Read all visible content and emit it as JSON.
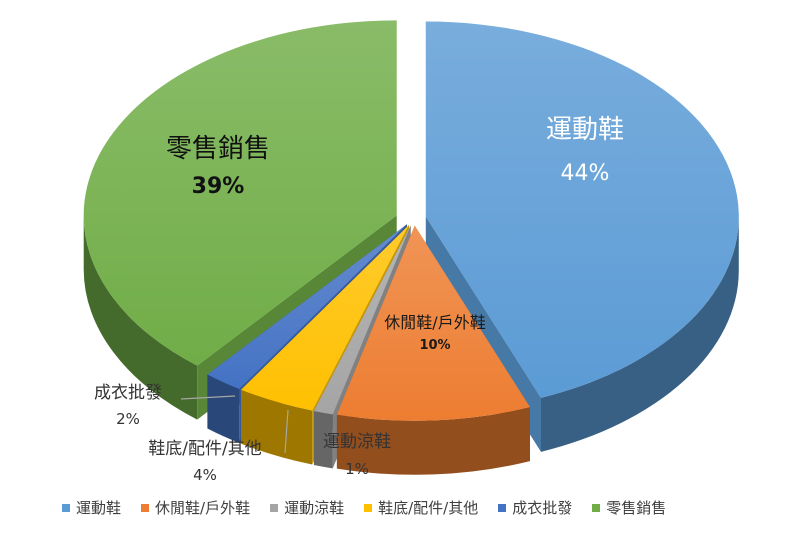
{
  "chart_data": {
    "type": "pie",
    "title": "",
    "style": "3d-exploded",
    "legend_position": "bottom",
    "slices": [
      {
        "label": "運動鞋",
        "value": 44,
        "display": "44%",
        "color": "#5b9bd5"
      },
      {
        "label": "休閒鞋/戶外鞋",
        "value": 10,
        "display": "10%",
        "color": "#ed7d31"
      },
      {
        "label": "運動涼鞋",
        "value": 1,
        "display": "1%",
        "color": "#a5a5a5"
      },
      {
        "label": "鞋底/配件/其他",
        "value": 4,
        "display": "4%",
        "color": "#ffc000"
      },
      {
        "label": "成衣批發",
        "value": 2,
        "display": "2%",
        "color": "#4472c4"
      },
      {
        "label": "零售銷售",
        "value": 39,
        "display": "39%",
        "color": "#70ad47"
      }
    ]
  }
}
